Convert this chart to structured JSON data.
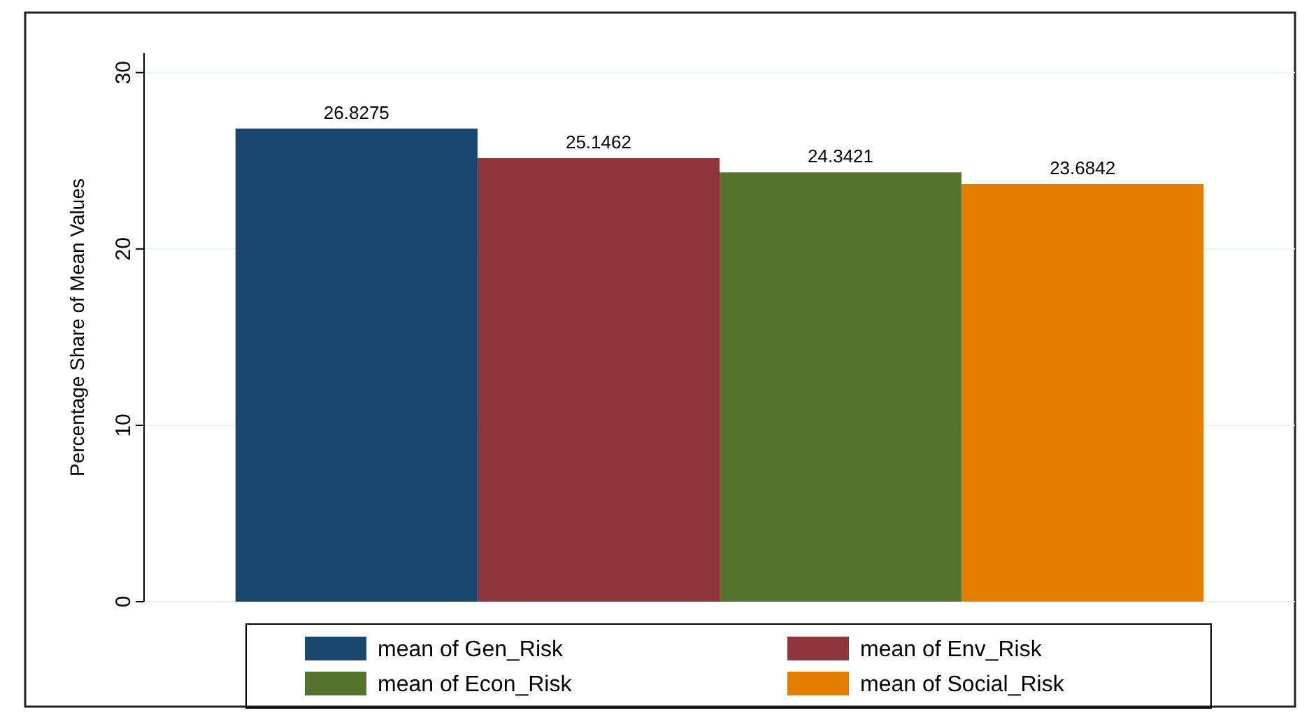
{
  "chart_data": {
    "type": "bar",
    "ylabel": "Percentage Share of Mean Values",
    "categories": [
      null
    ],
    "series": [
      {
        "name": "mean of Gen_Risk",
        "color": "#1a476f",
        "values": [
          26.8275
        ]
      },
      {
        "name": "mean of Env_Risk",
        "color": "#90353b",
        "values": [
          25.1462
        ]
      },
      {
        "name": "mean of Econ_Risk",
        "color": "#55752f",
        "values": [
          24.3421
        ]
      },
      {
        "name": "mean of Social_Risk",
        "color": "#e37e00",
        "values": [
          23.6842
        ]
      }
    ],
    "ylim": [
      0,
      31.1
    ],
    "yticks": [
      0,
      10,
      20,
      30
    ],
    "grid": "y",
    "data_labels": true,
    "legend": "bottom"
  }
}
